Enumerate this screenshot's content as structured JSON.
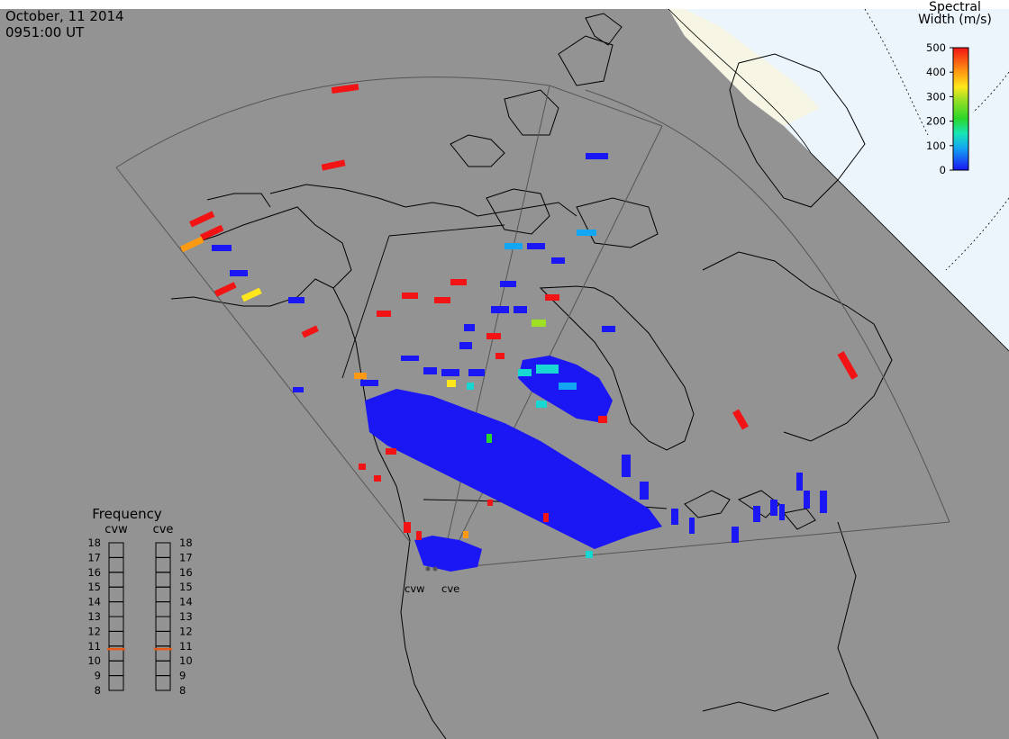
{
  "header": {
    "date": "October, 11 2014",
    "time": "0951:00 UT"
  },
  "colorbar": {
    "title_line1": "Spectral",
    "title_line2": "Width (m/s)",
    "ticks": [
      "500",
      "400",
      "300",
      "200",
      "100",
      "0"
    ],
    "min": 0,
    "max": 500
  },
  "frequency_panel": {
    "title": "Frequency",
    "radars": [
      {
        "name": "cvw",
        "value_mhz": 10.8,
        "marker_color": "#e85a1a"
      },
      {
        "name": "cve",
        "value_mhz": 10.8,
        "marker_color": "#e85a1a"
      }
    ],
    "scale": [
      "18",
      "17",
      "16",
      "15",
      "14",
      "13",
      "12",
      "11",
      "10",
      "9",
      "8"
    ]
  },
  "radar_sites": [
    {
      "name": "cvw"
    },
    {
      "name": "cve"
    }
  ],
  "colors": {
    "land": "#939393",
    "ocean_polar_day": "#ecf5fc",
    "sunlit_ice": "#f7f5e4",
    "coastline": "#000000",
    "fov_outline": "#555555",
    "low_width": "#1a16f4"
  }
}
